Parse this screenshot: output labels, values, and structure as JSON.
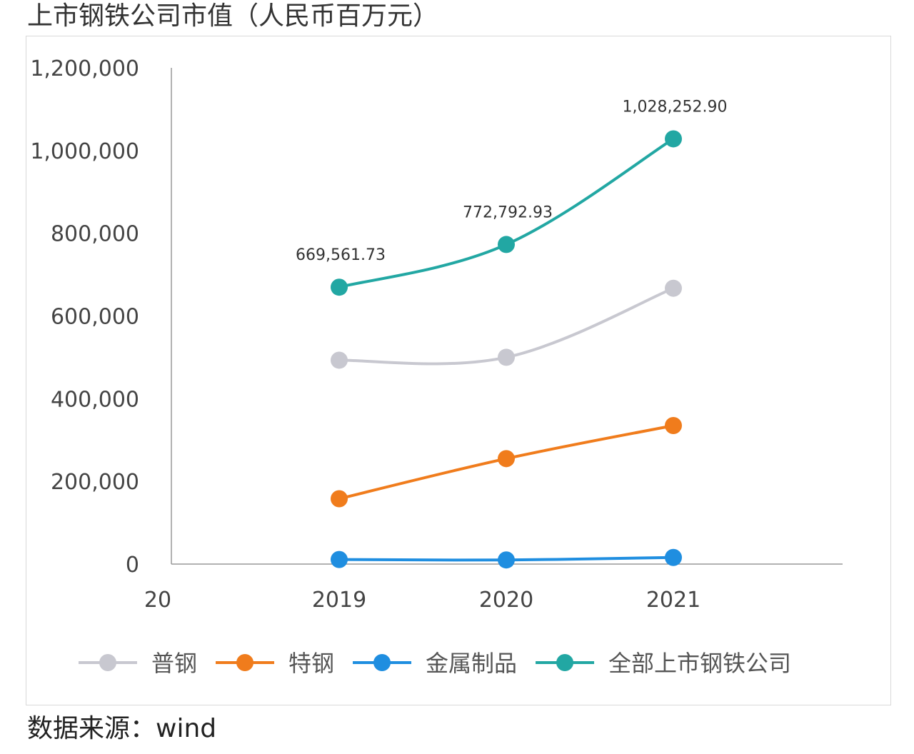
{
  "title": "上市钢铁公司市值（人民币百万元）",
  "source": "数据来源：wind",
  "chart_data": {
    "type": "line",
    "title": "上市钢铁公司市值（人民币百万元）",
    "x_tick_labels": [
      "20",
      "2019",
      "2020",
      "2021"
    ],
    "x": [
      "2019",
      "2020",
      "2021"
    ],
    "y_tick_labels": [
      "0",
      "200,000",
      "400,000",
      "600,000",
      "800,000",
      "1,000,000",
      "1,200,000"
    ],
    "ylim": [
      0,
      1200000
    ],
    "grid": false,
    "legend_position": "bottom",
    "series": [
      {
        "name": "普钢",
        "color": "#c8c8d0",
        "values": [
          493000,
          500000,
          667000
        ]
      },
      {
        "name": "特钢",
        "color": "#f07c1c",
        "values": [
          158000,
          255000,
          335000
        ]
      },
      {
        "name": "金属制品",
        "color": "#1f8ee0",
        "values": [
          11000,
          10000,
          16000
        ]
      },
      {
        "name": "全部上市钢铁公司",
        "color": "#22a7a3",
        "values": [
          669561.73,
          772792.93,
          1028252.9
        ],
        "labels": [
          "669,561.73",
          "772,792.93",
          "1,028,252.90"
        ]
      }
    ]
  }
}
